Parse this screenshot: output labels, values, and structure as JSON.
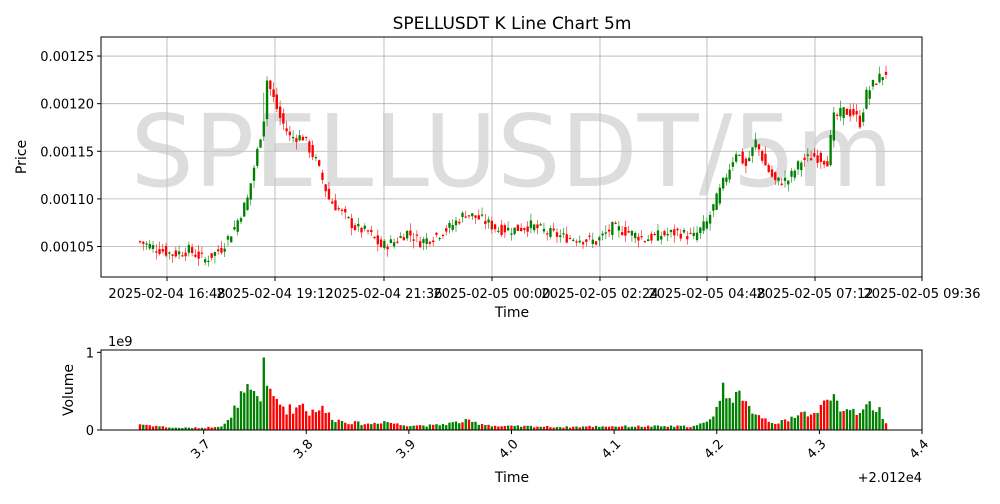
{
  "chart_data": [
    {
      "type": "candlestick",
      "title": "SPELLUSDT K Line Chart 5m",
      "watermark": "SPELLUSDT/5m",
      "xlabel": "Time",
      "ylabel": "Price",
      "x_tick_labels": [
        "2025-02-04 16:48",
        "2025-02-04 19:12",
        "2025-02-04 21:36",
        "2025-02-05 00:00",
        "2025-02-05 02:24",
        "2025-02-05 04:48",
        "2025-02-05 07:12",
        "2025-02-05 09:36"
      ],
      "y_tick_labels": [
        "0.00105",
        "0.00110",
        "0.00115",
        "0.00120",
        "0.00125"
      ],
      "y_ticks": [
        0.00105,
        0.0011,
        0.00115,
        0.0012,
        0.00125
      ],
      "ylim": [
        0.001018,
        0.00127
      ],
      "grid": true,
      "up_color": "#008000",
      "down_color": "#ff0000",
      "candles_close_keypoints": [
        [
          0,
          0.001055
        ],
        [
          5,
          0.001048
        ],
        [
          10,
          0.001042
        ],
        [
          15,
          0.001046
        ],
        [
          20,
          0.001036
        ],
        [
          25,
          0.001048
        ],
        [
          29,
          0.00107
        ],
        [
          33,
          0.0011
        ],
        [
          36,
          0.00115
        ],
        [
          38,
          0.001185
        ],
        [
          39,
          0.001225
        ],
        [
          41,
          0.001205
        ],
        [
          43,
          0.001185
        ],
        [
          46,
          0.001165
        ],
        [
          50,
          0.001165
        ],
        [
          54,
          0.00114
        ],
        [
          58,
          0.0011
        ],
        [
          62,
          0.001085
        ],
        [
          66,
          0.00107
        ],
        [
          70,
          0.001065
        ],
        [
          74,
          0.00105
        ],
        [
          78,
          0.001055
        ],
        [
          82,
          0.001065
        ],
        [
          86,
          0.001055
        ],
        [
          90,
          0.00106
        ],
        [
          95,
          0.00107
        ],
        [
          100,
          0.001085
        ],
        [
          105,
          0.001078
        ],
        [
          110,
          0.001068
        ],
        [
          115,
          0.001068
        ],
        [
          120,
          0.001072
        ],
        [
          125,
          0.001065
        ],
        [
          130,
          0.00106
        ],
        [
          135,
          0.001058
        ],
        [
          140,
          0.001055
        ],
        [
          145,
          0.00107
        ],
        [
          150,
          0.001065
        ],
        [
          155,
          0.001058
        ],
        [
          160,
          0.001062
        ],
        [
          165,
          0.001065
        ],
        [
          170,
          0.00106
        ],
        [
          174,
          0.001075
        ],
        [
          177,
          0.0011
        ],
        [
          180,
          0.001125
        ],
        [
          183,
          0.00115
        ],
        [
          186,
          0.001135
        ],
        [
          189,
          0.00116
        ],
        [
          192,
          0.001135
        ],
        [
          195,
          0.001118
        ],
        [
          199,
          0.00112
        ],
        [
          203,
          0.00114
        ],
        [
          207,
          0.001145
        ],
        [
          211,
          0.00114
        ],
        [
          213,
          0.001185
        ],
        [
          216,
          0.001192
        ],
        [
          219,
          0.00119
        ],
        [
          221,
          0.00118
        ],
        [
          223,
          0.00121
        ],
        [
          226,
          0.001225
        ],
        [
          229,
          0.001233
        ]
      ]
    },
    {
      "type": "bar",
      "xlabel": "Time",
      "ylabel": "Volume",
      "scale_label": "1e9",
      "offset_label": "+2.012e4",
      "x_tick_labels": [
        "3.7",
        "3.8",
        "3.9",
        "4.0",
        "4.1",
        "4.2",
        "4.3",
        "4.4"
      ],
      "x_ticks": [
        3.7,
        3.8,
        3.9,
        4.0,
        4.1,
        4.2,
        4.3,
        4.4
      ],
      "xlim": [
        3.6,
        4.4
      ],
      "y_tick_labels": [
        "0",
        "1"
      ],
      "y_ticks": [
        0,
        1
      ],
      "ylim": [
        0,
        1.03
      ],
      "volume_keypoints": [
        [
          0,
          0.08
        ],
        [
          10,
          0.03
        ],
        [
          20,
          0.03
        ],
        [
          25,
          0.06
        ],
        [
          28,
          0.15
        ],
        [
          30,
          0.4
        ],
        [
          33,
          0.5
        ],
        [
          35,
          0.45
        ],
        [
          37,
          0.4
        ],
        [
          38,
          1.0
        ],
        [
          40,
          0.45
        ],
        [
          42,
          0.4
        ],
        [
          45,
          0.28
        ],
        [
          48,
          0.3
        ],
        [
          50,
          0.38
        ],
        [
          52,
          0.22
        ],
        [
          54,
          0.3
        ],
        [
          56,
          0.28
        ],
        [
          60,
          0.14
        ],
        [
          65,
          0.1
        ],
        [
          70,
          0.08
        ],
        [
          75,
          0.12
        ],
        [
          80,
          0.07
        ],
        [
          90,
          0.06
        ],
        [
          100,
          0.12
        ],
        [
          110,
          0.05
        ],
        [
          120,
          0.05
        ],
        [
          130,
          0.04
        ],
        [
          140,
          0.05
        ],
        [
          150,
          0.05
        ],
        [
          160,
          0.05
        ],
        [
          170,
          0.05
        ],
        [
          174,
          0.1
        ],
        [
          177,
          0.3
        ],
        [
          179,
          0.55
        ],
        [
          181,
          0.5
        ],
        [
          183,
          0.5
        ],
        [
          185,
          0.35
        ],
        [
          187,
          0.3
        ],
        [
          189,
          0.25
        ],
        [
          192,
          0.15
        ],
        [
          195,
          0.1
        ],
        [
          199,
          0.12
        ],
        [
          202,
          0.25
        ],
        [
          205,
          0.22
        ],
        [
          208,
          0.2
        ],
        [
          211,
          0.55
        ],
        [
          213,
          0.45
        ],
        [
          215,
          0.2
        ],
        [
          218,
          0.3
        ],
        [
          220,
          0.25
        ],
        [
          222,
          0.3
        ],
        [
          224,
          0.35
        ],
        [
          226,
          0.3
        ],
        [
          228,
          0.2
        ],
        [
          229,
          0.08
        ]
      ]
    }
  ]
}
